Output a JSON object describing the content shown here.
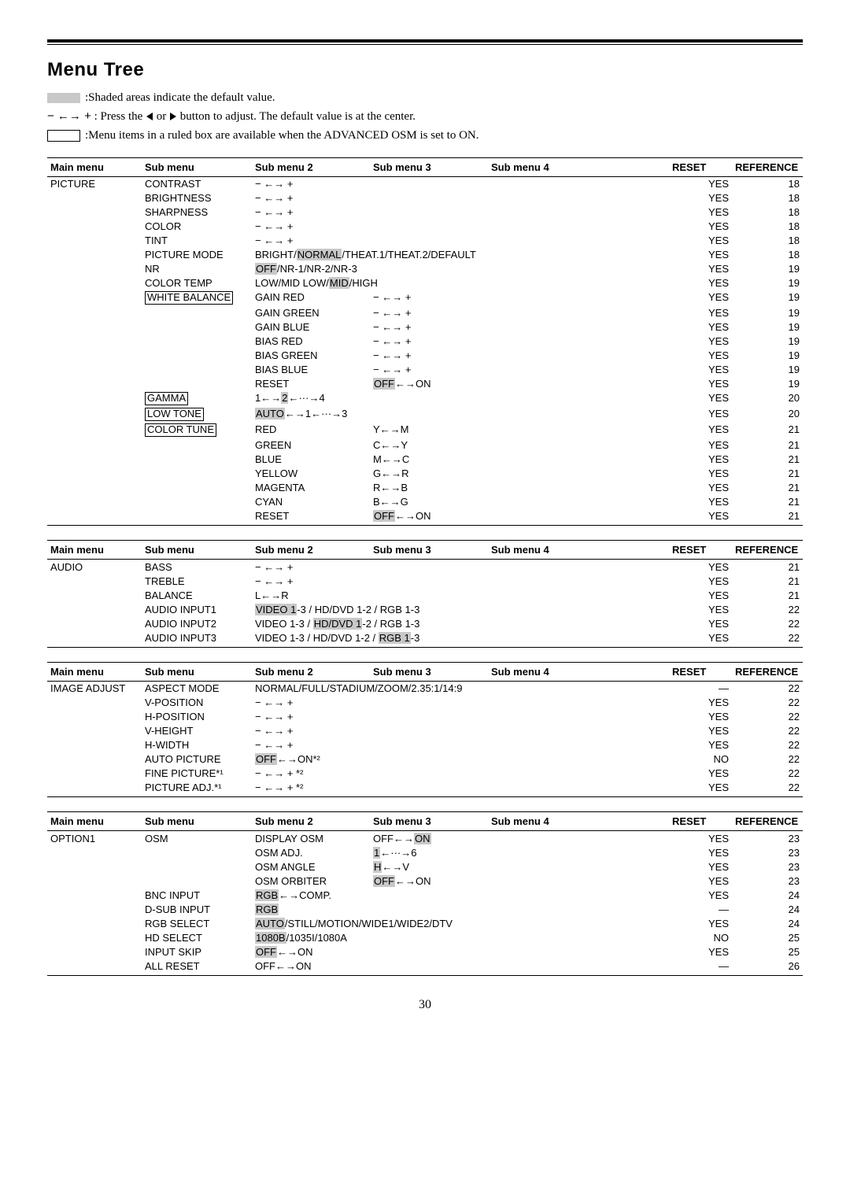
{
  "title": "Menu Tree",
  "legend": {
    "shaded": ":Shaded areas indicate the default value.",
    "arrows": " : Press the ",
    "arrows2": " or ",
    "arrows3": " button to adjust. The default value is at the center.",
    "ruled": ":Menu items in a ruled box are available when the ADVANCED OSM is set to ON."
  },
  "headers": {
    "main": "Main menu",
    "sub": "Sub menu",
    "s2": "Sub menu 2",
    "s3": "Sub menu 3",
    "s4": "Sub menu 4",
    "reset": "RESET",
    "ref": "REFERENCE"
  },
  "tables": {
    "picture": {
      "main": "PICTURE",
      "rows": [
        {
          "sub": "CONTRAST",
          "s2": "− ←→ +",
          "reset": "YES",
          "ref": "18"
        },
        {
          "sub": "BRIGHTNESS",
          "s2": "− ←→ +",
          "reset": "YES",
          "ref": "18"
        },
        {
          "sub": "SHARPNESS",
          "s2": "− ←→ +",
          "reset": "YES",
          "ref": "18"
        },
        {
          "sub": "COLOR",
          "s2": "− ←→ +",
          "reset": "YES",
          "ref": "18"
        },
        {
          "sub": "TINT",
          "s2": "− ←→ +",
          "reset": "YES",
          "ref": "18"
        },
        {
          "sub": "PICTURE MODE",
          "s2wide": "BRIGHT/[NORMAL]/THEAT.1/THEAT.2/DEFAULT",
          "reset": "YES",
          "ref": "18"
        },
        {
          "sub": "NR",
          "s2wide": "[OFF]/NR-1/NR-2/NR-3",
          "reset": "YES",
          "ref": "19"
        },
        {
          "sub": "COLOR TEMP",
          "s2wide": "LOW/MID LOW/[MID]/HIGH",
          "reset": "YES",
          "ref": "19"
        },
        {
          "sub": "WHITE BALANCE",
          "boxed": true,
          "s2": "GAIN RED",
          "s3": "− ←→ +",
          "reset": "YES",
          "ref": "19"
        },
        {
          "s2": "GAIN GREEN",
          "s3": "− ←→ +",
          "reset": "YES",
          "ref": "19"
        },
        {
          "s2": "GAIN BLUE",
          "s3": "− ←→ +",
          "reset": "YES",
          "ref": "19"
        },
        {
          "s2": "BIAS RED",
          "s3": "− ←→ +",
          "reset": "YES",
          "ref": "19"
        },
        {
          "s2": "BIAS GREEN",
          "s3": "− ←→ +",
          "reset": "YES",
          "ref": "19"
        },
        {
          "s2": "BIAS BLUE",
          "s3": "− ←→ +",
          "reset": "YES",
          "ref": "19"
        },
        {
          "s2": "RESET",
          "s3": "[OFF]←→ON",
          "reset": "YES",
          "ref": "19"
        },
        {
          "sub": "GAMMA",
          "boxed": true,
          "s2wide": "1←→[2]←···→4",
          "reset": "YES",
          "ref": "20"
        },
        {
          "sub": "LOW TONE",
          "boxed": true,
          "s2wide": "[AUTO]←→1←···→3",
          "reset": "YES",
          "ref": "20"
        },
        {
          "sub": "COLOR TUNE",
          "boxed": true,
          "s2": "RED",
          "s3": "Y←→M",
          "reset": "YES",
          "ref": "21"
        },
        {
          "s2": "GREEN",
          "s3": "C←→Y",
          "reset": "YES",
          "ref": "21"
        },
        {
          "s2": "BLUE",
          "s3": "M←→C",
          "reset": "YES",
          "ref": "21"
        },
        {
          "s2": "YELLOW",
          "s3": "G←→R",
          "reset": "YES",
          "ref": "21"
        },
        {
          "s2": "MAGENTA",
          "s3": "R←→B",
          "reset": "YES",
          "ref": "21"
        },
        {
          "s2": "CYAN",
          "s3": "B←→G",
          "reset": "YES",
          "ref": "21"
        },
        {
          "s2": "RESET",
          "s3": "[OFF]←→ON",
          "reset": "YES",
          "ref": "21"
        }
      ]
    },
    "audio": {
      "main": "AUDIO",
      "rows": [
        {
          "sub": "BASS",
          "s2": "− ←→ +",
          "reset": "YES",
          "ref": "21"
        },
        {
          "sub": "TREBLE",
          "s2": "− ←→ +",
          "reset": "YES",
          "ref": "21"
        },
        {
          "sub": "BALANCE",
          "s2": "L←→R",
          "reset": "YES",
          "ref": "21"
        },
        {
          "sub": "AUDIO INPUT1",
          "s2wide": "[VIDEO 1]-3 / HD/DVD 1-2 / RGB 1-3",
          "reset": "YES",
          "ref": "22"
        },
        {
          "sub": "AUDIO INPUT2",
          "s2wide": "VIDEO 1-3 / [HD/DVD 1]-2 / RGB 1-3",
          "reset": "YES",
          "ref": "22"
        },
        {
          "sub": "AUDIO INPUT3",
          "s2wide": "VIDEO 1-3 / HD/DVD 1-2 / [RGB 1]-3",
          "reset": "YES",
          "ref": "22"
        }
      ]
    },
    "image": {
      "main": "IMAGE ADJUST",
      "rows": [
        {
          "sub": "ASPECT MODE",
          "s2wide": "NORMAL/FULL/STADIUM/ZOOM/2.35:1/14:9",
          "reset": "—",
          "ref": "22"
        },
        {
          "sub": "V-POSITION",
          "s2": "− ←→ +",
          "reset": "YES",
          "ref": "22"
        },
        {
          "sub": "H-POSITION",
          "s2": "− ←→ +",
          "reset": "YES",
          "ref": "22"
        },
        {
          "sub": "V-HEIGHT",
          "s2": "− ←→ +",
          "reset": "YES",
          "ref": "22"
        },
        {
          "sub": "H-WIDTH",
          "s2": "− ←→ +",
          "reset": "YES",
          "ref": "22"
        },
        {
          "sub": "AUTO PICTURE",
          "s2": "[OFF]←→ON*²",
          "reset": "NO",
          "ref": "22"
        },
        {
          "sub": "FINE PICTURE*¹",
          "s2": "− ←→ + *²",
          "reset": "YES",
          "ref": "22"
        },
        {
          "sub": "PICTURE ADJ.*¹",
          "s2": "− ←→ + *²",
          "reset": "YES",
          "ref": "22"
        }
      ]
    },
    "option1": {
      "main": "OPTION1",
      "rows": [
        {
          "sub": "OSM",
          "s2": "DISPLAY OSM",
          "s3": "OFF←→[ON]",
          "reset": "YES",
          "ref": "23"
        },
        {
          "s2": "OSM ADJ.",
          "s3": "[1]←···→6",
          "reset": "YES",
          "ref": "23"
        },
        {
          "s2": "OSM ANGLE",
          "s3": "[H]←→V",
          "reset": "YES",
          "ref": "23"
        },
        {
          "s2": "OSM ORBITER",
          "s3": "[OFF]←→ON",
          "reset": "YES",
          "ref": "23"
        },
        {
          "sub": "BNC INPUT",
          "s2wide": "[RGB]←→COMP.",
          "reset": "YES",
          "ref": "24"
        },
        {
          "sub": "D-SUB INPUT",
          "s2": "[RGB]",
          "reset": "—",
          "ref": "24"
        },
        {
          "sub": "RGB SELECT",
          "s2wide": "[AUTO]/STILL/MOTION/WIDE1/WIDE2/DTV",
          "reset": "YES",
          "ref": "24"
        },
        {
          "sub": "HD SELECT",
          "s2wide": "[1080B]/1035I/1080A",
          "reset": "NO",
          "ref": "25"
        },
        {
          "sub": "INPUT SKIP",
          "s2": "[OFF]←→ON",
          "reset": "YES",
          "ref": "25"
        },
        {
          "sub": "ALL RESET",
          "s2": "OFF←→ON",
          "reset": "—",
          "ref": "26"
        }
      ]
    }
  },
  "pagenum": "30"
}
